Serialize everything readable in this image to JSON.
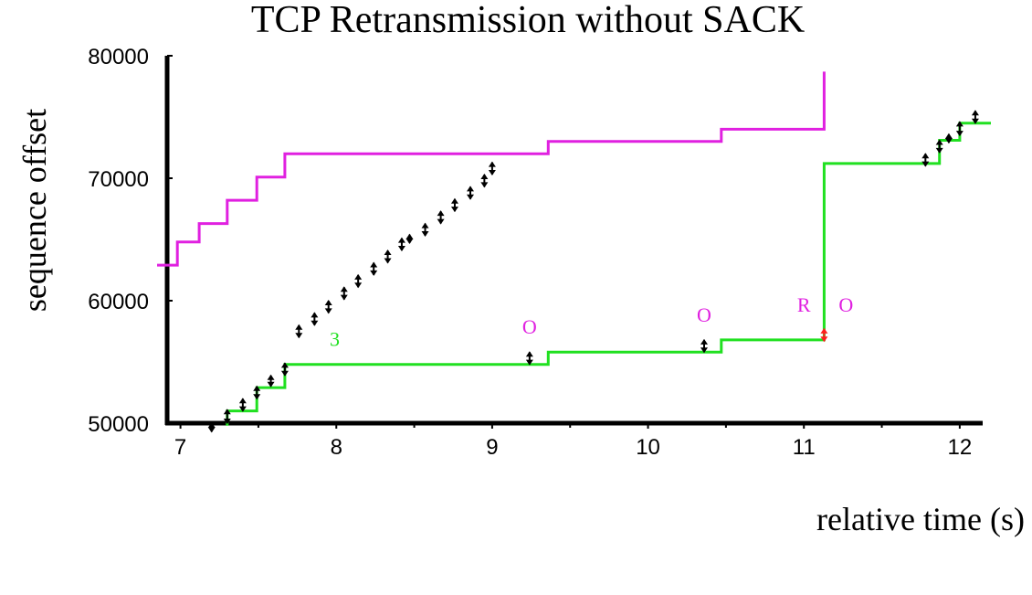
{
  "chart_data": {
    "type": "line",
    "title": "TCP Retransmission without SACK",
    "xlabel": "relative time (s)",
    "ylabel": "sequence offset",
    "xlim": [
      6.85,
      12.2
    ],
    "ylim": [
      50000,
      80000
    ],
    "x_ticks": [
      7,
      8,
      9,
      10,
      11,
      12
    ],
    "y_ticks": [
      50000,
      60000,
      70000,
      80000
    ],
    "x_tick_labels": [
      "7",
      "8",
      "9",
      "10",
      "11",
      "12"
    ],
    "y_tick_labels": [
      "50000",
      "60000",
      "70000",
      "80000"
    ],
    "grid": false,
    "legend": "none",
    "colors": {
      "receive_window": "#e020e0",
      "ack": "#20e020",
      "segments": "#000000",
      "retransmission": "#ff2020",
      "axes": "#000000"
    },
    "series": [
      {
        "key": "receive_window",
        "style": "step",
        "points": [
          [
            6.85,
            62900
          ],
          [
            6.98,
            62900
          ],
          [
            6.98,
            64800
          ],
          [
            7.12,
            64800
          ],
          [
            7.12,
            66300
          ],
          [
            7.3,
            66300
          ],
          [
            7.3,
            68200
          ],
          [
            7.49,
            68200
          ],
          [
            7.49,
            70100
          ],
          [
            7.67,
            70100
          ],
          [
            7.67,
            72000
          ],
          [
            9.36,
            72000
          ],
          [
            9.36,
            73000
          ],
          [
            10.47,
            73000
          ],
          [
            10.47,
            74000
          ],
          [
            11.13,
            74000
          ],
          [
            11.13,
            78700
          ]
        ]
      },
      {
        "key": "ack",
        "style": "step",
        "points": [
          [
            7.3,
            49800
          ],
          [
            7.3,
            51000
          ],
          [
            7.49,
            51000
          ],
          [
            7.49,
            52900
          ],
          [
            7.67,
            52900
          ],
          [
            7.67,
            54800
          ],
          [
            9.36,
            54800
          ],
          [
            9.36,
            55800
          ],
          [
            10.47,
            55800
          ],
          [
            10.47,
            56800
          ],
          [
            11.13,
            56800
          ],
          [
            11.13,
            71200
          ],
          [
            11.87,
            71200
          ],
          [
            11.87,
            73100
          ],
          [
            12.0,
            73100
          ],
          [
            12.0,
            74500
          ],
          [
            12.2,
            74500
          ]
        ]
      }
    ],
    "segments": [
      [
        7.2,
        49300,
        50000
      ],
      [
        7.3,
        50000,
        51100
      ],
      [
        7.4,
        51000,
        52000
      ],
      [
        7.49,
        52000,
        53000
      ],
      [
        7.58,
        53000,
        53900
      ],
      [
        7.67,
        53900,
        54900
      ],
      [
        7.76,
        57000,
        58000
      ],
      [
        7.86,
        58000,
        59000
      ],
      [
        7.95,
        59000,
        60000
      ],
      [
        8.05,
        60100,
        61100
      ],
      [
        8.14,
        61100,
        62100
      ],
      [
        8.24,
        62100,
        63100
      ],
      [
        8.33,
        63100,
        64100
      ],
      [
        8.42,
        64100,
        65100
      ],
      [
        8.47,
        64700,
        65400
      ],
      [
        8.57,
        65300,
        66300
      ],
      [
        8.67,
        66300,
        67300
      ],
      [
        8.76,
        67300,
        68300
      ],
      [
        8.86,
        68300,
        69300
      ],
      [
        8.95,
        69300,
        70300
      ],
      [
        9.0,
        70300,
        71300
      ],
      [
        9.24,
        54800,
        55800
      ],
      [
        10.36,
        55800,
        56800
      ],
      [
        11.78,
        71000,
        72000
      ],
      [
        11.87,
        72100,
        73100
      ],
      [
        11.93,
        72900,
        73600
      ],
      [
        12.0,
        73500,
        74600
      ],
      [
        12.1,
        74500,
        75500
      ]
    ],
    "retransmissions": [
      [
        11.13,
        56700,
        57700
      ]
    ],
    "annotations": [
      {
        "text": "3",
        "x": 7.99,
        "y": 56300,
        "color": "#20e020"
      },
      {
        "text": "O",
        "x": 9.24,
        "y": 57300,
        "color": "#e020e0"
      },
      {
        "text": "O",
        "x": 10.36,
        "y": 58300,
        "color": "#e020e0"
      },
      {
        "text": "R",
        "x": 11.0,
        "y": 59100,
        "color": "#e020e0"
      },
      {
        "text": "O",
        "x": 11.27,
        "y": 59100,
        "color": "#e020e0"
      }
    ]
  }
}
